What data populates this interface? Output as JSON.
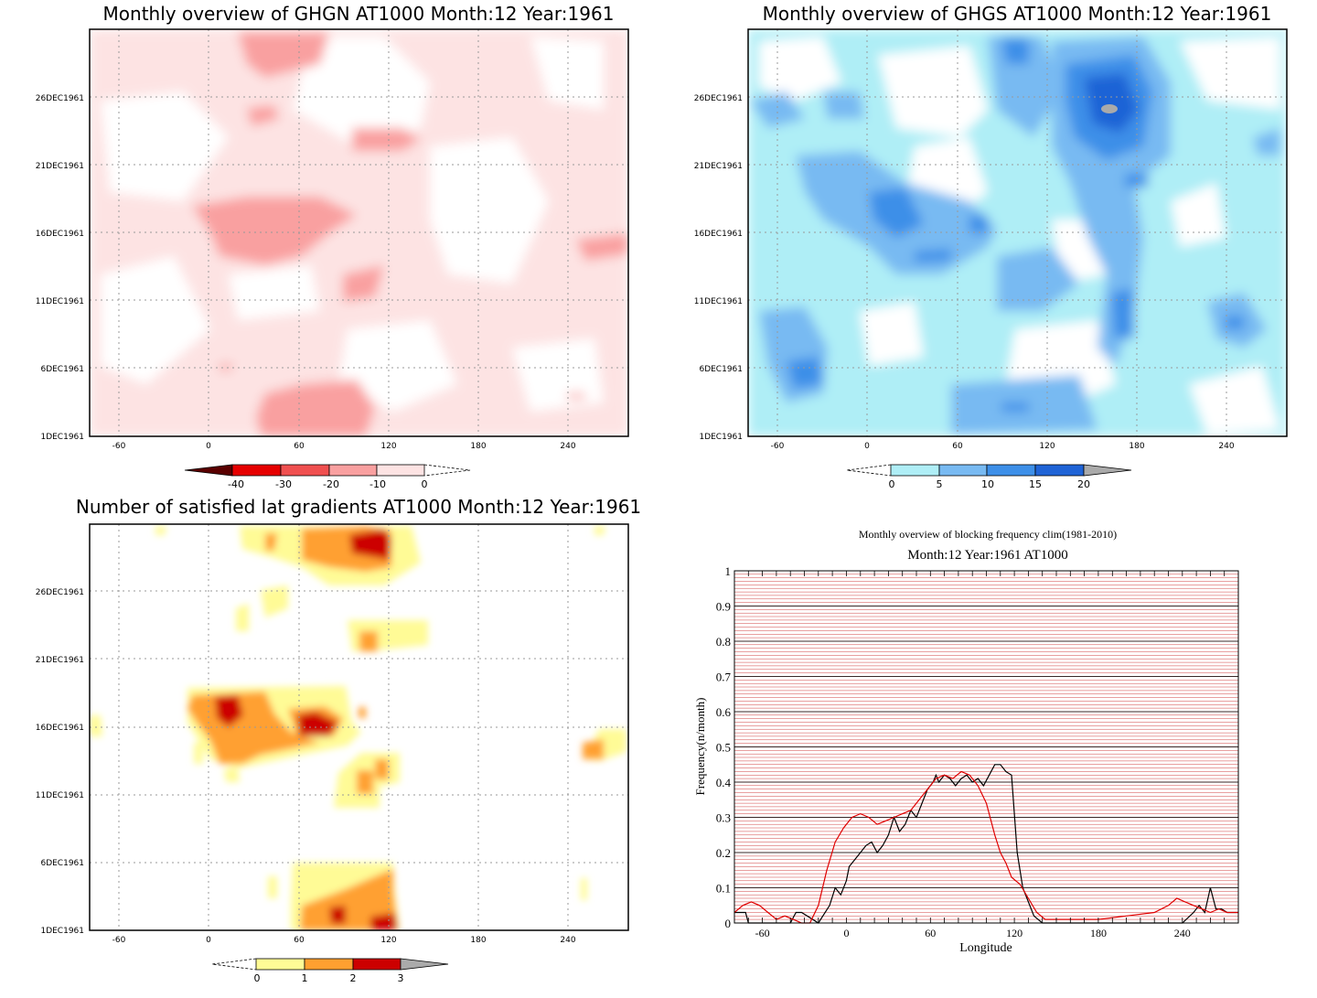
{
  "chart_data": [
    {
      "type": "heatmap",
      "title": "Monthly overview of GHGN AT1000 Month:12 Year:1961",
      "x_ticks": [
        "-60",
        "0",
        "60",
        "120",
        "180",
        "240"
      ],
      "y_ticks": [
        "1DEC1961",
        "6DEC1961",
        "11DEC1961",
        "16DEC1961",
        "21DEC1961",
        "26DEC1961"
      ],
      "xlim": [
        -80,
        280
      ],
      "colorbar": {
        "labels": [
          "-40",
          "-30",
          "-20",
          "-10",
          "0"
        ],
        "colors": [
          "#5a0000",
          "#e60000",
          "#f05050",
          "#f9a0a0",
          "#fde3e3"
        ]
      },
      "grid": true
    },
    {
      "type": "heatmap",
      "title": "Monthly overview of GHGS AT1000 Month:12 Year:1961",
      "x_ticks": [
        "-60",
        "0",
        "60",
        "120",
        "180",
        "240"
      ],
      "y_ticks": [
        "1DEC1961",
        "6DEC1961",
        "11DEC1961",
        "16DEC1961",
        "21DEC1961",
        "26DEC1961"
      ],
      "xlim": [
        -80,
        280
      ],
      "colorbar": {
        "labels": [
          "0",
          "5",
          "10",
          "15",
          "20"
        ],
        "colors": [
          "#afeef6",
          "#78baf2",
          "#3d8fe8",
          "#1f63d6",
          "#aaaaaa"
        ]
      },
      "grid": true
    },
    {
      "type": "heatmap",
      "title": "Number of satisfied lat gradients AT1000 Month:12 Year:1961",
      "x_ticks": [
        "-60",
        "0",
        "60",
        "120",
        "180",
        "240"
      ],
      "y_ticks": [
        "1DEC1961",
        "6DEC1961",
        "11DEC1961",
        "16DEC1961",
        "21DEC1961",
        "26DEC1961"
      ],
      "xlim": [
        -80,
        280
      ],
      "colorbar": {
        "labels": [
          "0",
          "1",
          "2",
          "3"
        ],
        "colors": [
          "#fffb96",
          "#ffa030",
          "#cc0000",
          "#aaaaaa"
        ]
      },
      "grid": true
    },
    {
      "type": "line",
      "title": "Monthly overview of blocking frequency clim(1981-2010)",
      "subtitle": "Month:12 Year:1961 AT1000",
      "xlabel": "Longitude",
      "ylabel": "Frequency(n/month)",
      "xlim": [
        -80,
        280
      ],
      "ylim": [
        0,
        1
      ],
      "x_ticks": [
        "-60",
        "0",
        "60",
        "120",
        "180",
        "240"
      ],
      "y_ticks": [
        "0",
        "0.1",
        "0.2",
        "0.3",
        "0.4",
        "0.5",
        "0.6",
        "0.7",
        "0.8",
        "0.9",
        "1"
      ],
      "grid": true,
      "series": [
        {
          "color": "#000000",
          "x": [
            -80,
            -72,
            -70,
            -40,
            -36,
            -32,
            -20,
            -12,
            -8,
            -4,
            0,
            2,
            6,
            10,
            14,
            18,
            22,
            26,
            30,
            34,
            38,
            42,
            46,
            50,
            54,
            58,
            62,
            64,
            66,
            70,
            74,
            78,
            82,
            86,
            90,
            94,
            98,
            102,
            106,
            110,
            114,
            118,
            122,
            126,
            130,
            134,
            140,
            160,
            180,
            200,
            220,
            240,
            248,
            252,
            256,
            260,
            264,
            268,
            272,
            280
          ],
          "y": [
            0.03,
            0.03,
            0,
            0,
            0.03,
            0.03,
            0,
            0.05,
            0.1,
            0.08,
            0.12,
            0.16,
            0.18,
            0.2,
            0.22,
            0.23,
            0.2,
            0.22,
            0.25,
            0.3,
            0.26,
            0.28,
            0.32,
            0.3,
            0.34,
            0.38,
            0.4,
            0.42,
            0.4,
            0.42,
            0.41,
            0.39,
            0.41,
            0.42,
            0.4,
            0.41,
            0.39,
            0.42,
            0.45,
            0.45,
            0.43,
            0.42,
            0.2,
            0.1,
            0.06,
            0.02,
            0,
            0,
            0,
            0,
            0,
            0,
            0.03,
            0.05,
            0.03,
            0.1,
            0.04,
            0.04,
            0.03,
            0.03
          ]
        },
        {
          "color": "#e00000",
          "x": [
            -80,
            -74,
            -68,
            -62,
            -56,
            -50,
            -44,
            -38,
            -32,
            -26,
            -20,
            -14,
            -8,
            -2,
            4,
            10,
            16,
            22,
            28,
            34,
            40,
            46,
            52,
            58,
            64,
            70,
            76,
            82,
            88,
            94,
            100,
            106,
            110,
            114,
            118,
            124,
            130,
            136,
            142,
            150,
            160,
            180,
            200,
            220,
            230,
            236,
            242,
            248,
            254,
            260,
            266,
            272,
            280
          ],
          "y": [
            0.03,
            0.05,
            0.06,
            0.05,
            0.03,
            0.01,
            0.02,
            0.01,
            0.0,
            0.0,
            0.05,
            0.15,
            0.23,
            0.27,
            0.3,
            0.31,
            0.3,
            0.28,
            0.29,
            0.3,
            0.31,
            0.32,
            0.35,
            0.38,
            0.41,
            0.42,
            0.41,
            0.43,
            0.42,
            0.39,
            0.34,
            0.25,
            0.2,
            0.17,
            0.13,
            0.11,
            0.07,
            0.03,
            0.01,
            0.01,
            0.01,
            0.01,
            0.02,
            0.03,
            0.05,
            0.07,
            0.06,
            0.05,
            0.04,
            0.03,
            0.04,
            0.03,
            0.03
          ]
        }
      ]
    }
  ]
}
